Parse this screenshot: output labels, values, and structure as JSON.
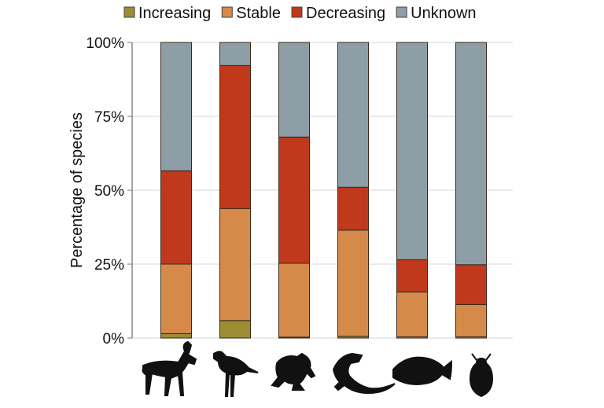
{
  "chart_data": {
    "type": "bar",
    "stacked": true,
    "categories": [
      "antelope-icon",
      "bird-icon",
      "frog-icon",
      "lizard-icon",
      "fish-icon",
      "beetle-icon"
    ],
    "series": [
      {
        "name": "Increasing",
        "color": "#9c8c33",
        "values": [
          1.5,
          5.9,
          0.3,
          0.6,
          0.4,
          0.4
        ]
      },
      {
        "name": "Stable",
        "color": "#d68a4a",
        "values": [
          23.5,
          37.9,
          25.0,
          35.9,
          15.2,
          10.9
        ]
      },
      {
        "name": "Decreasing",
        "color": "#c0391d",
        "values": [
          31.6,
          48.4,
          42.7,
          14.5,
          10.9,
          13.5
        ]
      },
      {
        "name": "Unknown",
        "color": "#8e9ea6",
        "values": [
          43.4,
          7.8,
          32.0,
          49.0,
          73.5,
          75.2
        ]
      }
    ],
    "ylabel": "Percentage of species",
    "yticks": [
      "0%",
      "25%",
      "50%",
      "75%",
      "100%"
    ],
    "ylim": [
      0,
      100
    ],
    "grid": true,
    "legend": "top"
  }
}
